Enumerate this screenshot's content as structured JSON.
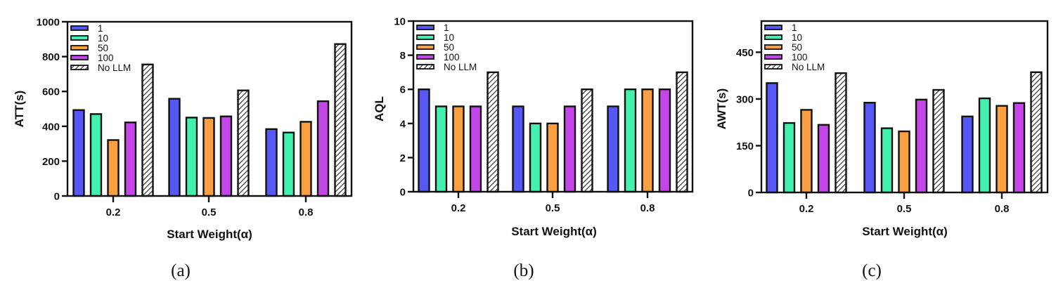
{
  "colors": {
    "1": "#5558F5",
    "10": "#44F0AE",
    "50": "#FBA042",
    "100": "#C446E8",
    "No LLM": "hatch",
    "axis": "#111111",
    "hatch_line": "#222222"
  },
  "chart_data": [
    {
      "type": "bar",
      "caption": "(a)",
      "title": "",
      "xlabel": "Start  Weight(α)",
      "ylabel": "ATT(s)",
      "categories": [
        "0.2",
        "0.5",
        "0.8"
      ],
      "ylim": [
        0,
        1000
      ],
      "yticks": [
        0,
        200,
        400,
        600,
        800,
        1000
      ],
      "grid": false,
      "legend_position": "top-left",
      "series": [
        {
          "name": "1",
          "values": [
            493,
            558,
            384
          ]
        },
        {
          "name": "10",
          "values": [
            470,
            450,
            364
          ]
        },
        {
          "name": "50",
          "values": [
            321,
            448,
            426
          ]
        },
        {
          "name": "100",
          "values": [
            422,
            457,
            544
          ]
        },
        {
          "name": "No LLM",
          "values": [
            755,
            606,
            872
          ]
        }
      ]
    },
    {
      "type": "bar",
      "caption": "(b)",
      "title": "",
      "xlabel": "Start  Weight(α)",
      "ylabel": "AQL",
      "categories": [
        "0.2",
        "0.5",
        "0.8"
      ],
      "ylim": [
        0,
        10
      ],
      "yticks": [
        0,
        2,
        4,
        6,
        8,
        10
      ],
      "grid": false,
      "legend_position": "top-left",
      "series": [
        {
          "name": "1",
          "values": [
            6,
            5,
            5
          ]
        },
        {
          "name": "10",
          "values": [
            5,
            4,
            6
          ]
        },
        {
          "name": "50",
          "values": [
            5,
            4,
            6
          ]
        },
        {
          "name": "100",
          "values": [
            5,
            5,
            6
          ]
        },
        {
          "name": "No LLM",
          "values": [
            7,
            6,
            7
          ]
        }
      ]
    },
    {
      "type": "bar",
      "caption": "(c)",
      "title": "",
      "xlabel": "Start  Weight(α)",
      "ylabel": "AWT(s)",
      "categories": [
        "0.2",
        "0.5",
        "0.8"
      ],
      "ylim": [
        0,
        550
      ],
      "yticks": [
        0,
        150,
        300,
        450
      ],
      "grid": false,
      "legend_position": "top-left",
      "series": [
        {
          "name": "1",
          "values": [
            351,
            288,
            244
          ]
        },
        {
          "name": "10",
          "values": [
            223,
            206,
            302
          ]
        },
        {
          "name": "50",
          "values": [
            265,
            196,
            278
          ]
        },
        {
          "name": "100",
          "values": [
            217,
            298,
            287
          ]
        },
        {
          "name": "No LLM",
          "values": [
            383,
            329,
            386
          ]
        }
      ]
    }
  ]
}
